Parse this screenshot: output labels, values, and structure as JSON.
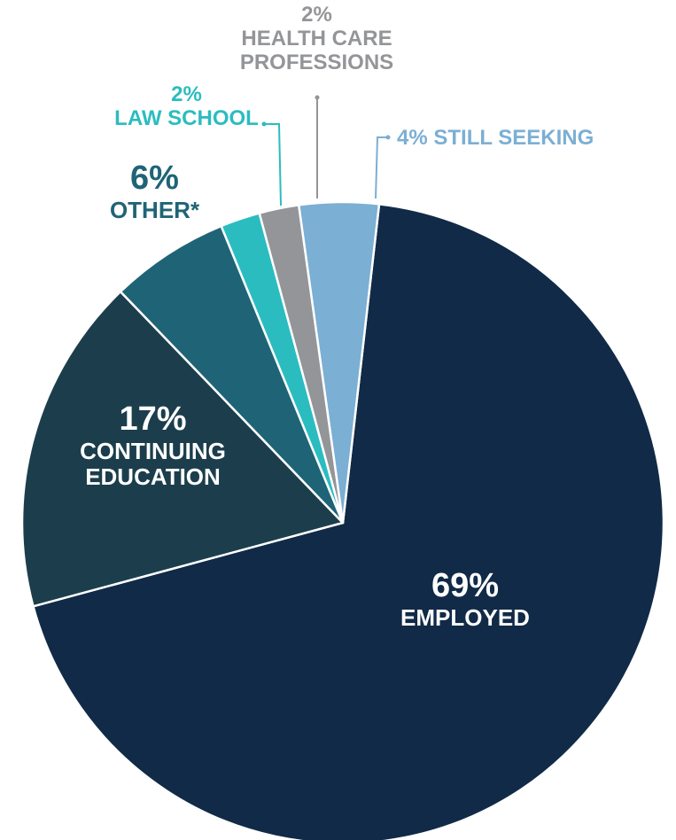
{
  "chart_data": {
    "type": "pie",
    "slices": [
      {
        "name": "EMPLOYED",
        "percent_label": "69%",
        "value": 69,
        "color": "#112a47"
      },
      {
        "name_lines": [
          "CONTINUING",
          "EDUCATION"
        ],
        "percent_label": "17%",
        "value": 17,
        "color": "#1c3e4c"
      },
      {
        "name": "OTHER*",
        "percent_label": "6%",
        "value": 6,
        "color": "#1f6476"
      },
      {
        "name": "LAW SCHOOL",
        "percent_label": "2%",
        "value": 2,
        "color": "#2bbcc0"
      },
      {
        "name_lines": [
          "HEALTH CARE",
          "PROFESSIONS"
        ],
        "percent_label": "2%",
        "value": 2,
        "color": "#939598"
      },
      {
        "name": "STILL SEEKING",
        "percent_label": "4%",
        "value": 4,
        "color": "#7bafd4"
      }
    ],
    "label_colors": {
      "employed": "#ffffff",
      "continuing": "#ffffff",
      "other": "#1f6476",
      "law": "#2bbcc0",
      "health": "#939598",
      "seeking": "#7bafd4"
    },
    "start_angle_deg": 6.5,
    "direction": "clockwise-from-12"
  }
}
